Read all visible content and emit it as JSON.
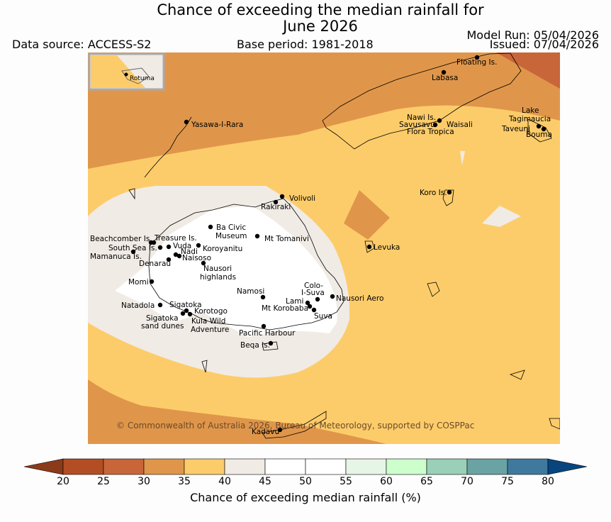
{
  "title": {
    "line1": "Chance of exceeding the median rainfall for",
    "line2": "June 2026"
  },
  "header": {
    "data_source": "Data source: ACCESS-S2",
    "base_period": "Base period: 1981-2018",
    "model_run": "Model Run: 05/04/2026",
    "issued": "Issued: 07/04/2026"
  },
  "inset": {
    "label": "Rotuma"
  },
  "copyright": "© Commonwealth of Australia 2026, Bureau of Meteorology, supported by COSPPac",
  "places": {
    "floating_is": "Floating Is.",
    "labasa": "Labasa",
    "yasawa": "Yasawa-I-Rara",
    "nawi": "Nawi Is.",
    "savusavu": "Savusavu",
    "waisali": "Waisali",
    "flora_tropica": "Flora Tropica",
    "lake_tagimaucia_1": "Lake",
    "lake_tagimaucia_2": "Tagimaucia",
    "taveuni": "Taveuni",
    "bouma": "Bouma",
    "koro": "Koro Is.",
    "volivoli": "Volivoli",
    "rakiraki": "Rakiraki",
    "ba_civic_1": "Ba Civic",
    "ba_civic_2": "Museum",
    "mt_tomanivi": "Mt Tomanivi",
    "beachcomber": "Beachcomber Is.",
    "treasure": "Treasure Is.",
    "south_sea": "South Sea Is.",
    "vuda": "Vuda",
    "nadi": "Nadi",
    "koroyanitu": "Koroyanitu",
    "mamanuca": "Mamanuca Is.",
    "naisoso": "Naisoso",
    "denarau": "Denarau",
    "nausori_high_1": "Nausori",
    "nausori_high_2": "highlands",
    "levuka": "Levuka",
    "momi": "Momi",
    "colo_1": "Colo-",
    "colo_2": "I-Suva",
    "namosi": "Namosi",
    "lami": "Lami",
    "nausori_aero": "Nausori Aero",
    "natadola": "Natadola",
    "sigatoka": "Sigatoka",
    "korotogo": "Korotogo",
    "mt_korobaba": "Mt Korobaba",
    "suva": "Suva",
    "sig_dunes_1": "Sigatoka",
    "sig_dunes_2": "sand dunes",
    "kula_1": "Kula Wild",
    "kula_2": "Adventure",
    "pacific_harbour": "Pacific Harbour",
    "beqa": "Beqa Is.",
    "kadavu": "Kadavu"
  },
  "colorbar": {
    "label": "Chance of exceeding median rainfall (%)",
    "ticks": [
      "20",
      "25",
      "30",
      "35",
      "40",
      "45",
      "50",
      "55",
      "60",
      "65",
      "70",
      "75",
      "80"
    ],
    "colors": [
      "#8b3a1a",
      "#b34e24",
      "#c8663a",
      "#e0964a",
      "#fdcc6a",
      "#f0ebe5",
      "#ffffff",
      "#ffffff",
      "#e6f5e6",
      "#ccffcc",
      "#9ad0b8",
      "#6aa3a3",
      "#3f7a9e",
      "#08457e"
    ]
  }
}
